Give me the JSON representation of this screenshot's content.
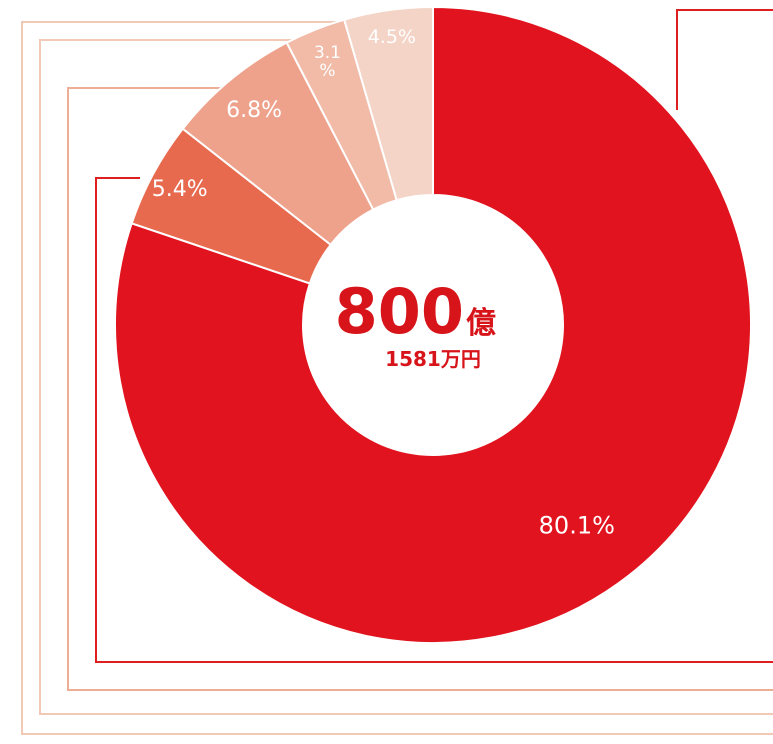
{
  "colors": {
    "frame_light": "#f1c9b4",
    "frame_mid": "#eeae95",
    "frame_dark": "#df1f1f",
    "background": "#ffffff",
    "center_text": "#d7141a"
  },
  "center_label": {
    "amount": "800",
    "unit": "億",
    "sub": "1581万円"
  },
  "chart_data": {
    "type": "pie",
    "variant": "donut",
    "title": "",
    "legend": "none",
    "series": [
      {
        "value": 80.1,
        "label": "80.1%",
        "color": "#e1131e"
      },
      {
        "value": 5.4,
        "label": "5.4%",
        "color": "#e76a4e"
      },
      {
        "value": 6.8,
        "label": "6.8%",
        "color": "#eea28c"
      },
      {
        "value": 3.1,
        "label": "3.1\n%",
        "color": "#f1bba8"
      },
      {
        "value": 4.5,
        "label": "4.5%",
        "color": "#f3d4c6"
      }
    ]
  }
}
